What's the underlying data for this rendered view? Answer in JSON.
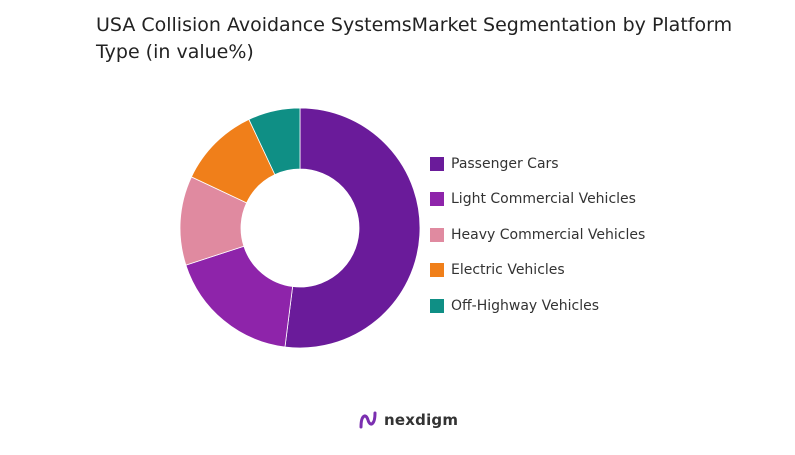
{
  "chart_data": {
    "type": "pie",
    "variant": "donut",
    "title": "USA Collision Avoidance SystemsMarket Segmentation by Platform Type (in value%)",
    "legend_position": "right",
    "categories": [
      "Passenger Cars",
      "Light Commercial Vehicles",
      "Heavy Commercial Vehicles",
      "Electric Vehicles",
      "Off-Highway Vehicles"
    ],
    "values": [
      52,
      18,
      12,
      11,
      7
    ],
    "colors": [
      "#6a1b9a",
      "#8e24aa",
      "#e08aa0",
      "#f07f1a",
      "#0f8f85"
    ]
  },
  "brand": {
    "name": "nexdigm",
    "logo_icon": "nexdigm-logo-icon",
    "logo_color": "#7b2fb0"
  }
}
